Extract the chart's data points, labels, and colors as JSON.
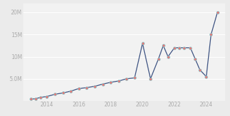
{
  "years": [
    2013.0,
    2013.3,
    2013.6,
    2014.0,
    2014.5,
    2015.0,
    2015.5,
    2016.0,
    2016.5,
    2017.0,
    2017.5,
    2018.0,
    2018.5,
    2019.0,
    2019.5,
    2020.0,
    2020.5,
    2021.0,
    2021.3,
    2021.6,
    2022.0,
    2022.3,
    2022.6,
    2023.0,
    2023.3,
    2023.6,
    2024.0,
    2024.3,
    2024.7
  ],
  "values": [
    0.4,
    0.5,
    0.8,
    1.0,
    1.5,
    1.8,
    2.2,
    2.8,
    3.0,
    3.3,
    3.8,
    4.2,
    4.5,
    5.0,
    5.2,
    13.0,
    5.0,
    9.5,
    12.5,
    10.0,
    12.0,
    12.0,
    12.0,
    12.0,
    9.5,
    7.0,
    5.5,
    15.0,
    20.0
  ],
  "line_color": "#3a5080",
  "marker_color": "#e07878",
  "marker_edge_color": "#88c8cc",
  "bg_color": "#ebebeb",
  "plot_bg_color": "#f2f2f2",
  "grid_color": "#ffffff",
  "yticks": [
    5.0,
    10.0,
    15.0,
    20.0
  ],
  "ytick_labels": [
    "5.0M",
    "10M",
    "15M",
    "20M"
  ],
  "xticks": [
    2014,
    2016,
    2018,
    2020,
    2022,
    2024
  ],
  "xlim": [
    2012.5,
    2025.2
  ],
  "ylim": [
    0,
    22.0
  ],
  "tick_fontsize": 5.5,
  "tick_color": "#aaaaaa"
}
